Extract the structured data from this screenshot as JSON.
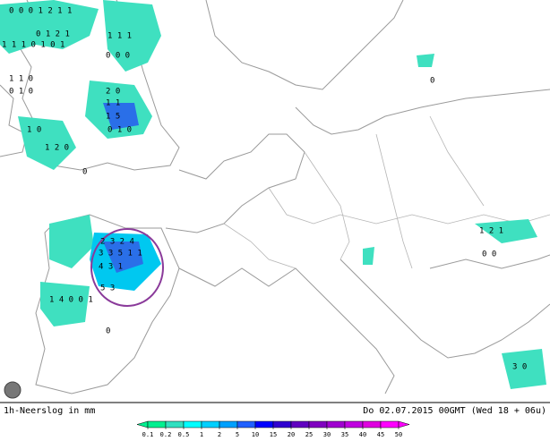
{
  "map": {
    "title": "1h-Neerslog in mm",
    "valid_time": "Do 02.07.2015 00GMT (Wed 18 + 06u)",
    "precip_labels": [
      "0 0 0 1 2 1 1",
      "0 1 2 1",
      "1 1 1 0 1 0 1",
      "1 1 1",
      "0 0 0",
      "1 1 0",
      "0 1 0",
      "2 0",
      "1 1",
      "1 5",
      "0 1 0",
      "0",
      "1 0",
      "1 2 0",
      "2 3 2 4",
      "3 3 5 1 1",
      "4 3 1",
      "1 4 0 0 1",
      "5 3",
      "0",
      "1 2 1",
      "0 0",
      "0",
      "3 0"
    ],
    "legend": {
      "ticks": [
        0.1,
        0.2,
        0.5,
        1,
        2,
        5,
        10,
        15,
        20,
        25,
        30,
        35,
        40,
        45,
        50
      ],
      "colors": [
        "#00f090",
        "#30e0c0",
        "#00ffff",
        "#00d0ff",
        "#00a0ff",
        "#2060ff",
        "#0000ff",
        "#3000d0",
        "#6000c0",
        "#8000c0",
        "#a000d0",
        "#c000e0",
        "#e000e0",
        "#ff00ff"
      ]
    }
  }
}
